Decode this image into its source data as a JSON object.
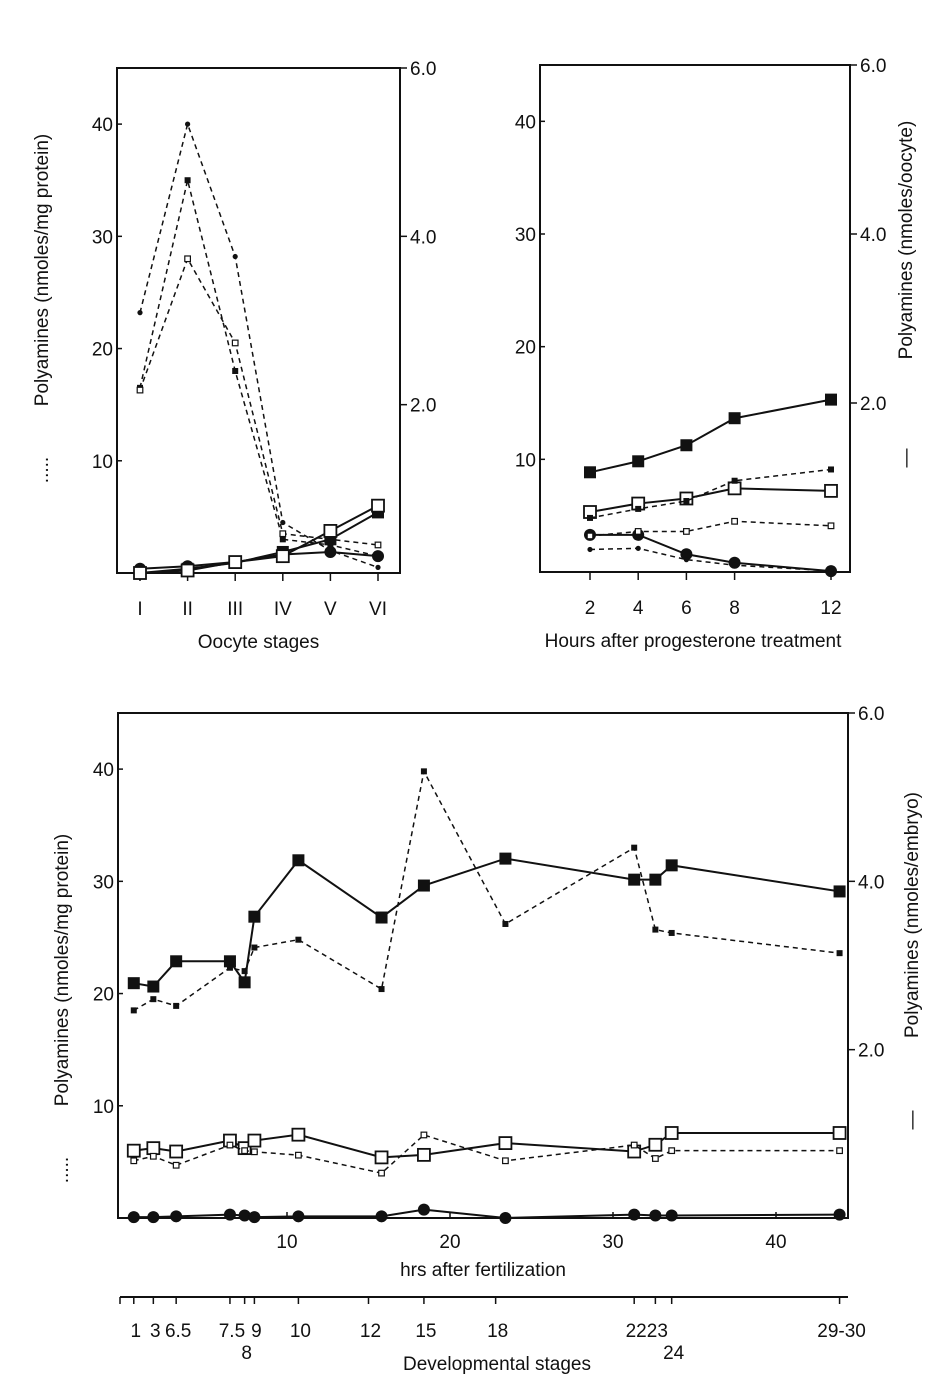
{
  "chart_data": [
    {
      "type": "line",
      "xlabel": "Oocyte stages",
      "ylabel_left": "Polyamines (nmoles/mg protein)",
      "ylabel_left_symbol": ".....",
      "ylabel_right": "",
      "ylabel_right_symbol": "",
      "categories": [
        "I",
        "II",
        "III",
        "IV",
        "V",
        "VI"
      ],
      "ylim_left": [
        0,
        45
      ],
      "ylim_right": [
        0,
        6.0
      ],
      "yticks_left": [
        "10",
        "20",
        "30",
        "40"
      ],
      "yticks_right": [
        "2.0",
        "4.0",
        "6.0"
      ],
      "series": [
        {
          "axis": "left",
          "style": "dashed",
          "marker": "small-filled-circle",
          "values": [
            23.2,
            40,
            28.2,
            4.5,
            2.0,
            0.5
          ]
        },
        {
          "axis": "left",
          "style": "dashed",
          "marker": "small-filled-square",
          "values": [
            16.5,
            35,
            18,
            3.0,
            2.5,
            1.5
          ]
        },
        {
          "axis": "left",
          "style": "dashed",
          "marker": "small-open-square",
          "values": [
            16.3,
            28,
            20.5,
            3.5,
            3.0,
            2.5
          ]
        },
        {
          "axis": "right",
          "style": "solid",
          "marker": "large-filled-circle",
          "values": [
            0.05,
            0.08,
            0.13,
            0.22,
            0.25,
            0.2
          ]
        },
        {
          "axis": "right",
          "style": "solid",
          "marker": "large-filled-square",
          "values": [
            0.0,
            0.05,
            0.12,
            0.25,
            0.4,
            0.72
          ]
        },
        {
          "axis": "right",
          "style": "solid",
          "marker": "large-open-square",
          "values": [
            0.0,
            0.03,
            0.13,
            0.2,
            0.5,
            0.8
          ]
        }
      ]
    },
    {
      "type": "line",
      "xlabel": "Hours after progesterone treatment",
      "ylabel_left": "",
      "ylabel_left_symbol": "",
      "ylabel_right": "Polyamines (nmoles/oocyte)",
      "ylabel_right_symbol": "—",
      "x": [
        2,
        4,
        6,
        8,
        12
      ],
      "xticks": [
        "2",
        "4",
        "6",
        "8",
        "12"
      ],
      "ylim_left": [
        0,
        45
      ],
      "ylim_right": [
        0,
        6.0
      ],
      "yticks_left": [
        "10",
        "20",
        "30",
        "40"
      ],
      "yticks_right": [
        "2.0",
        "4.0",
        "6.0"
      ],
      "series": [
        {
          "axis": "right",
          "style": "solid",
          "marker": "large-filled-square",
          "values": [
            1.18,
            1.31,
            1.5,
            1.82,
            2.04
          ]
        },
        {
          "axis": "right",
          "style": "solid",
          "marker": "large-open-square",
          "values": [
            0.71,
            0.81,
            0.87,
            0.99,
            0.96
          ]
        },
        {
          "axis": "right",
          "style": "solid",
          "marker": "large-filled-circle",
          "values": [
            0.44,
            0.44,
            0.21,
            0.11,
            0.01
          ]
        },
        {
          "axis": "left",
          "style": "dashed",
          "marker": "small-filled-square",
          "values": [
            4.8,
            5.6,
            6.3,
            8.1,
            9.1
          ]
        },
        {
          "axis": "left",
          "style": "dashed",
          "marker": "small-open-square",
          "values": [
            3.2,
            3.6,
            3.6,
            4.5,
            4.1
          ]
        },
        {
          "axis": "left",
          "style": "dashed",
          "marker": "small-filled-circle",
          "values": [
            2.0,
            2.1,
            1.1,
            0.6,
            0.1
          ]
        }
      ]
    },
    {
      "type": "line",
      "xlabel": "hrs after fertilization",
      "xlabel2": "Developmental stages",
      "ylabel_left": "Polyamines (nmoles/mg protein)",
      "ylabel_left_symbol": ".....",
      "ylabel_right": "Polyamines (nmoles/embryo)",
      "ylabel_right_symbol": "—",
      "x": [
        0.6,
        1.8,
        3.2,
        6.5,
        7.4,
        8.0,
        10.7,
        15.8,
        18.4,
        23.4,
        31.3,
        32.6,
        33.6,
        43.9
      ],
      "xticks": [
        "10",
        "20",
        "30",
        "40"
      ],
      "xtick_values": [
        10,
        20,
        30,
        40
      ],
      "stage_ticks": [
        {
          "label": "1",
          "x": 0.6,
          "row": 1
        },
        {
          "label": "3",
          "x": 1.8,
          "row": 1
        },
        {
          "label": "6.5",
          "x": 3.2,
          "row": 1
        },
        {
          "label": "7.5",
          "x": 6.5,
          "row": 1
        },
        {
          "label": "8",
          "x": 7.4,
          "row": 2
        },
        {
          "label": "9",
          "x": 8.0,
          "row": 1
        },
        {
          "label": "10",
          "x": 10.7,
          "row": 1
        },
        {
          "label": "12",
          "x": 15.0,
          "row": 1
        },
        {
          "label": "15",
          "x": 18.4,
          "row": 1
        },
        {
          "label": "18",
          "x": 22.8,
          "row": 1
        },
        {
          "label": "22",
          "x": 31.3,
          "row": 1
        },
        {
          "label": "23",
          "x": 32.6,
          "row": 1
        },
        {
          "label": "24",
          "x": 33.6,
          "row": 2
        },
        {
          "label": "29-30",
          "x": 43.9,
          "row": 1
        }
      ],
      "xlim": [
        0,
        44.5
      ],
      "ylim_left": [
        0,
        45
      ],
      "ylim_right": [
        0,
        6.0
      ],
      "yticks_left": [
        "10",
        "20",
        "30",
        "40"
      ],
      "yticks_right": [
        "2.0",
        "4.0",
        "6.0"
      ],
      "series": [
        {
          "axis": "right",
          "style": "solid",
          "marker": "large-filled-square",
          "values": [
            2.79,
            2.75,
            3.05,
            3.05,
            2.8,
            3.58,
            4.25,
            3.57,
            3.95,
            4.27,
            4.02,
            4.02,
            4.19,
            3.88
          ]
        },
        {
          "axis": "left",
          "style": "dashed",
          "marker": "small-filled-square",
          "values": [
            18.5,
            19.5,
            18.9,
            22.3,
            22.0,
            24.1,
            24.8,
            20.4,
            39.8,
            26.2,
            33.0,
            25.7,
            25.4,
            23.6
          ]
        },
        {
          "axis": "right",
          "style": "solid",
          "marker": "large-open-square",
          "values": [
            0.8,
            0.83,
            0.79,
            0.92,
            0.83,
            0.92,
            0.99,
            0.72,
            0.75,
            0.89,
            0.79,
            0.87,
            1.01,
            1.01
          ]
        },
        {
          "axis": "left",
          "style": "dashed",
          "marker": "small-open-square",
          "values": [
            5.1,
            5.5,
            4.7,
            6.5,
            6.0,
            5.9,
            5.6,
            4.0,
            7.4,
            5.1,
            6.5,
            5.3,
            6.0,
            6.0
          ]
        },
        {
          "axis": "right",
          "style": "solid",
          "marker": "large-filled-circle",
          "values": [
            0.01,
            0.01,
            0.02,
            0.04,
            0.03,
            0.01,
            0.02,
            0.02,
            0.1,
            0.0,
            0.04,
            0.03,
            0.03,
            0.04
          ]
        }
      ]
    }
  ]
}
